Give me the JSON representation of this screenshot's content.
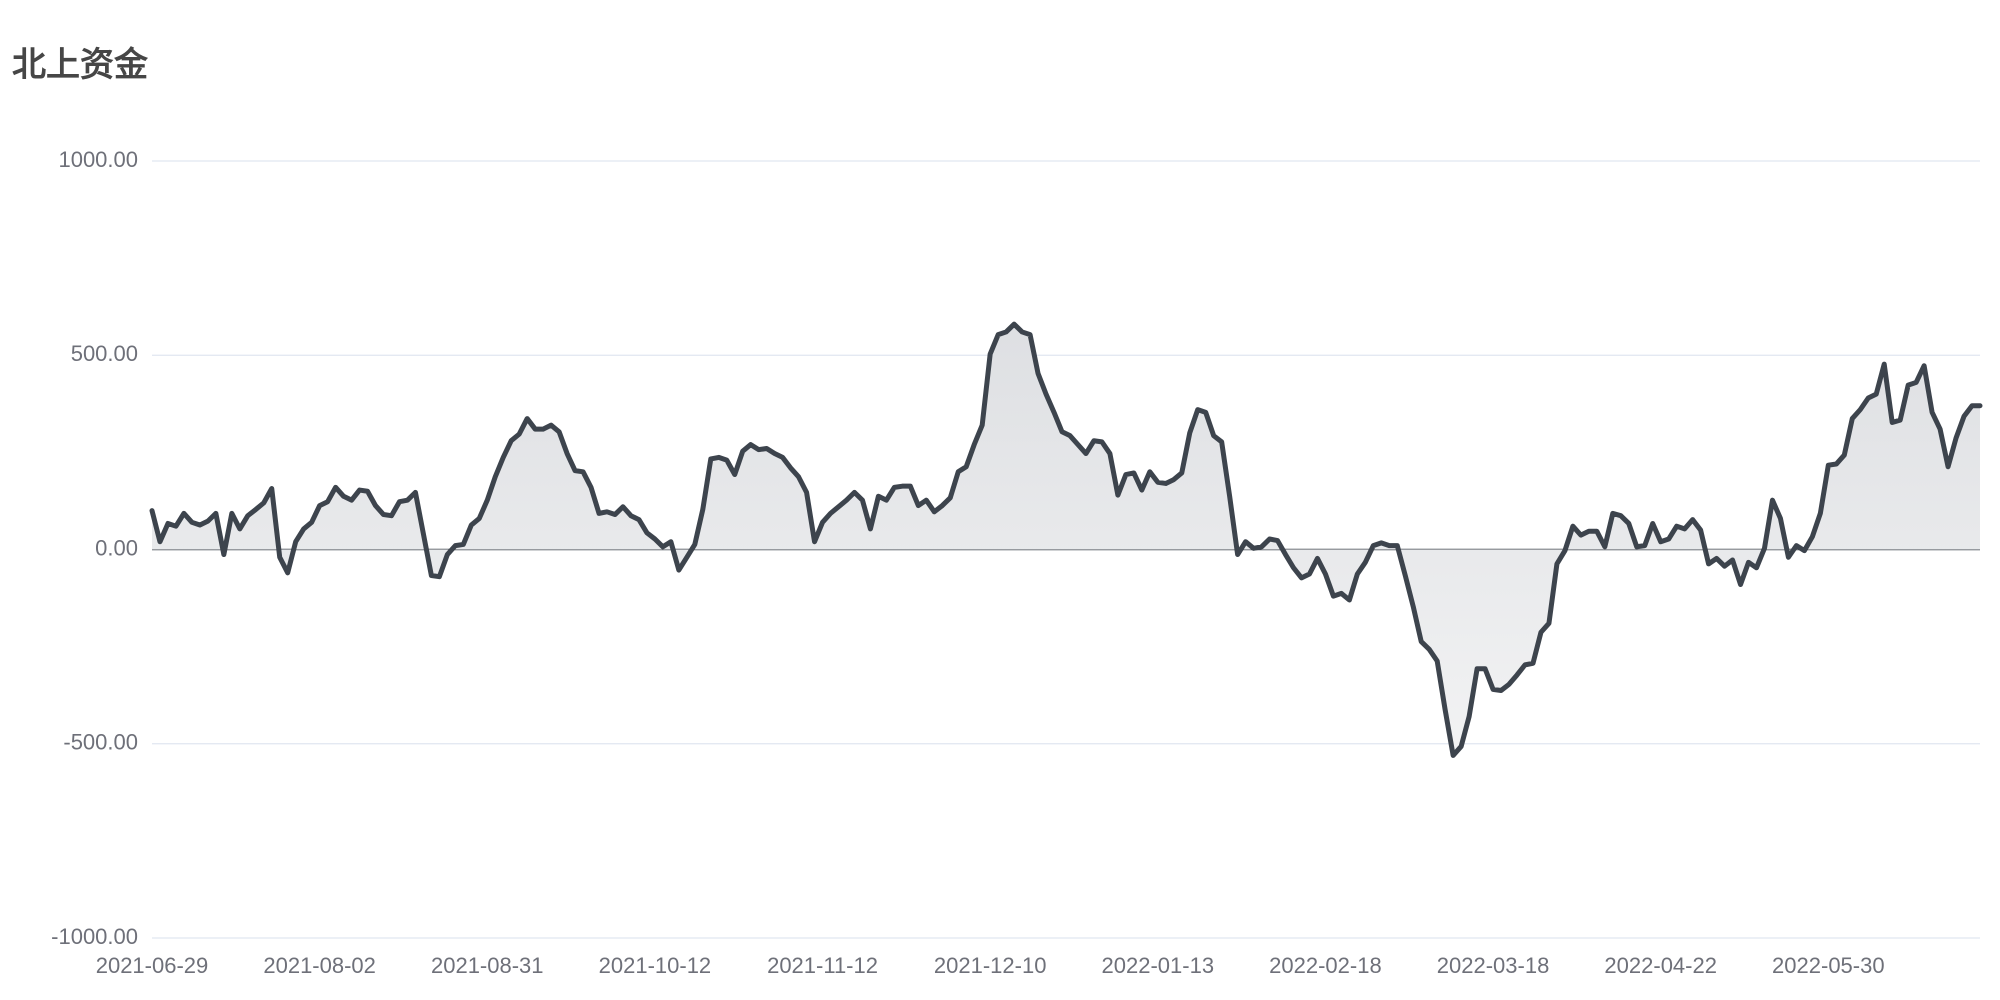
{
  "chart_data": {
    "type": "line",
    "title": "北上资金",
    "categories": [
      "2021-06-29",
      null,
      null,
      null,
      null,
      null,
      null,
      null,
      null,
      null,
      null,
      null,
      null,
      null,
      null,
      null,
      null,
      null,
      null,
      null,
      null,
      "2021-08-02",
      null,
      null,
      null,
      null,
      null,
      null,
      null,
      null,
      null,
      null,
      null,
      null,
      null,
      null,
      null,
      null,
      null,
      null,
      null,
      null,
      "2021-08-31",
      null,
      null,
      null,
      null,
      null,
      null,
      null,
      null,
      null,
      null,
      null,
      null,
      null,
      null,
      null,
      null,
      null,
      null,
      null,
      null,
      "2021-10-12",
      null,
      null,
      null,
      null,
      null,
      null,
      null,
      null,
      null,
      null,
      null,
      null,
      null,
      null,
      null,
      null,
      null,
      null,
      null,
      null,
      "2021-11-12",
      null,
      null,
      null,
      null,
      null,
      null,
      null,
      null,
      null,
      null,
      null,
      null,
      null,
      null,
      null,
      null,
      null,
      null,
      null,
      null,
      "2021-12-10",
      null,
      null,
      null,
      null,
      null,
      null,
      null,
      null,
      null,
      null,
      null,
      null,
      null,
      null,
      null,
      null,
      null,
      null,
      null,
      null,
      "2022-01-13",
      null,
      null,
      null,
      null,
      null,
      null,
      null,
      null,
      null,
      null,
      null,
      null,
      null,
      null,
      null,
      null,
      null,
      null,
      null,
      null,
      "2022-02-18",
      null,
      null,
      null,
      null,
      null,
      null,
      null,
      null,
      null,
      null,
      null,
      null,
      null,
      null,
      null,
      null,
      null,
      null,
      null,
      null,
      "2022-03-18",
      null,
      null,
      null,
      null,
      null,
      null,
      null,
      null,
      null,
      null,
      null,
      null,
      null,
      null,
      null,
      null,
      null,
      null,
      null,
      null,
      "2022-04-22",
      null,
      null,
      null,
      null,
      null,
      null,
      null,
      null,
      null,
      null,
      null,
      null,
      null,
      null,
      null,
      null,
      null,
      null,
      null,
      null,
      "2022-05-30",
      null,
      null,
      null,
      null,
      null,
      null,
      null,
      null,
      null,
      null,
      null,
      null,
      null,
      null,
      null,
      null,
      null,
      null,
      null
    ],
    "series": [
      {
        "color": "#3d444d",
        "values": [
          100,
          20,
          67,
          60,
          93,
          70,
          63,
          73,
          93,
          -13,
          93,
          53,
          87,
          103,
          120,
          157,
          -20,
          -60,
          20,
          53,
          70,
          113,
          123,
          160,
          137,
          127,
          153,
          150,
          113,
          90,
          87,
          123,
          127,
          147,
          40,
          -67,
          -70,
          -13,
          10,
          13,
          63,
          80,
          127,
          187,
          237,
          280,
          297,
          337,
          310,
          310,
          320,
          303,
          247,
          203,
          200,
          160,
          93,
          97,
          90,
          110,
          87,
          77,
          43,
          27,
          7,
          20,
          -53,
          -20,
          13,
          103,
          233,
          237,
          230,
          193,
          253,
          270,
          257,
          260,
          247,
          237,
          210,
          187,
          147,
          20,
          70,
          93,
          110,
          127,
          147,
          127,
          53,
          137,
          127,
          160,
          163,
          163,
          113,
          127,
          97,
          113,
          133,
          200,
          213,
          270,
          320,
          503,
          553,
          560,
          580,
          560,
          553,
          453,
          400,
          353,
          303,
          293,
          270,
          247,
          280,
          277,
          247,
          140,
          193,
          197,
          153,
          200,
          173,
          170,
          180,
          197,
          300,
          360,
          353,
          293,
          277,
          137,
          -13,
          20,
          3,
          7,
          27,
          23,
          -13,
          -47,
          -73,
          -63,
          -23,
          -63,
          -120,
          -113,
          -130,
          -63,
          -33,
          10,
          17,
          10,
          10,
          -67,
          -147,
          -237,
          -257,
          -287,
          -413,
          -530,
          -507,
          -430,
          -307,
          -307,
          -360,
          -363,
          -347,
          -323,
          -297,
          -293,
          -213,
          -190,
          -37,
          -3,
          60,
          37,
          47,
          47,
          7,
          93,
          87,
          67,
          7,
          10,
          67,
          20,
          27,
          60,
          53,
          77,
          50,
          -37,
          -23,
          -43,
          -27,
          -90,
          -33,
          -47,
          3,
          127,
          80,
          -20,
          10,
          -3,
          33,
          93,
          217,
          220,
          243,
          337,
          360,
          390,
          400,
          477,
          327,
          333,
          423,
          430,
          473,
          353,
          310,
          213,
          287,
          343,
          370,
          370
        ]
      }
    ],
    "ylim": [
      -1000,
      1000
    ],
    "yticks": [
      {
        "value": -1000,
        "label": "-1000.00"
      },
      {
        "value": -500,
        "label": "-500.00"
      },
      {
        "value": 0,
        "label": "0.00"
      },
      {
        "value": 500,
        "label": "500.00"
      },
      {
        "value": 1000,
        "label": "1000.00"
      }
    ],
    "grid": true,
    "area": true
  }
}
